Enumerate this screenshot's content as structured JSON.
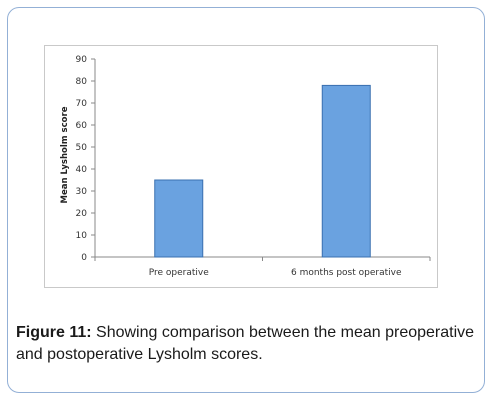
{
  "chart_data": {
    "type": "bar",
    "categories": [
      "Pre operative",
      "6 months post operative"
    ],
    "values": [
      35,
      78
    ],
    "title": "",
    "xlabel": "",
    "ylabel": "Mean Lysholm score",
    "ylim": [
      0,
      90
    ],
    "yticks": [
      0,
      10,
      20,
      30,
      40,
      50,
      60,
      70,
      80,
      90
    ],
    "grid": false,
    "legend": "none",
    "bar_color": "#6aa2e0",
    "bar_border_color": "#3a70b0"
  },
  "caption": {
    "label": "Figure 11:",
    "text": " Showing comparison between the mean preoperative and postoperative Lysholm scores."
  }
}
